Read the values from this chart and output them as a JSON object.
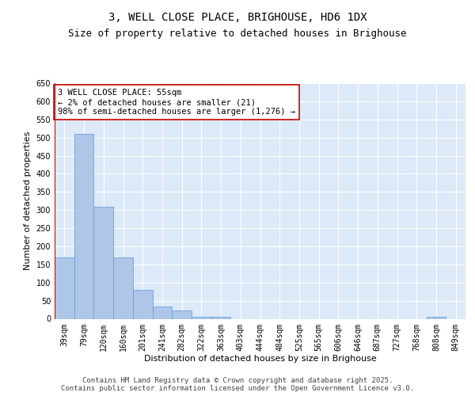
{
  "title_line1": "3, WELL CLOSE PLACE, BRIGHOUSE, HD6 1DX",
  "title_line2": "Size of property relative to detached houses in Brighouse",
  "xlabel": "Distribution of detached houses by size in Brighouse",
  "ylabel": "Number of detached properties",
  "categories": [
    "39sqm",
    "79sqm",
    "120sqm",
    "160sqm",
    "201sqm",
    "241sqm",
    "282sqm",
    "322sqm",
    "363sqm",
    "403sqm",
    "444sqm",
    "484sqm",
    "525sqm",
    "565sqm",
    "606sqm",
    "646sqm",
    "687sqm",
    "727sqm",
    "768sqm",
    "808sqm",
    "849sqm"
  ],
  "values": [
    170,
    510,
    310,
    170,
    80,
    33,
    22,
    5,
    5,
    0,
    0,
    0,
    0,
    0,
    0,
    0,
    0,
    0,
    0,
    5,
    0
  ],
  "bar_color": "#aec6e8",
  "bar_edge_color": "#5b9bd5",
  "highlight_line_color": "#cc0000",
  "ylim": [
    0,
    650
  ],
  "yticks": [
    0,
    50,
    100,
    150,
    200,
    250,
    300,
    350,
    400,
    450,
    500,
    550,
    600,
    650
  ],
  "annotation_text": "3 WELL CLOSE PLACE: 55sqm\n← 2% of detached houses are smaller (21)\n98% of semi-detached houses are larger (1,276) →",
  "annotation_box_color": "#ffffff",
  "annotation_box_edge": "#cc0000",
  "background_color": "#dce9f8",
  "grid_color": "#ffffff",
  "footer_text": "Contains HM Land Registry data © Crown copyright and database right 2025.\nContains public sector information licensed under the Open Government Licence v3.0.",
  "title_fontsize": 10,
  "subtitle_fontsize": 9,
  "axis_label_fontsize": 8,
  "tick_fontsize": 7,
  "annotation_fontsize": 7.5,
  "footer_fontsize": 6.5
}
